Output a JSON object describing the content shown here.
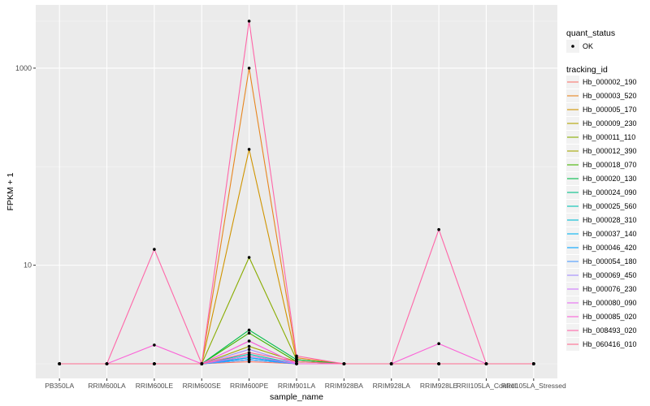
{
  "chart_data": {
    "type": "line",
    "title": "",
    "xlabel": "sample_name",
    "ylabel": "FPKM + 1",
    "y_scale": "log10",
    "ylim": [
      1,
      3000
    ],
    "y_ticks": [
      {
        "value": 10,
        "label": "10"
      },
      {
        "value": 1000,
        "label": "1000"
      }
    ],
    "grid": true,
    "background": "#ebebeb",
    "categories": [
      "PB350LA",
      "RRIM600LA",
      "RRIM600LE",
      "RRIM600SE",
      "RRIM600PE",
      "RRIM901LA",
      "RRIM928BA",
      "RRIM928LA",
      "RRIM928LE",
      "RRII105LA_Control",
      "RRII105LA_Stressed"
    ],
    "legend_position": "right",
    "legend": {
      "point_title": "quant_status",
      "point_items": [
        {
          "label": "OK",
          "color": "#000000"
        }
      ],
      "line_title": "tracking_id"
    },
    "series": [
      {
        "name": "Hb_000002_190",
        "color": "#F8766D",
        "values": [
          1,
          1,
          1,
          1,
          1.05,
          1,
          1,
          1,
          1,
          1,
          1
        ]
      },
      {
        "name": "Hb_000003_520",
        "color": "#E7851E",
        "values": [
          1,
          1,
          1,
          1,
          1000,
          1.15,
          1,
          1,
          1,
          1,
          1
        ]
      },
      {
        "name": "Hb_000005_170",
        "color": "#D09400",
        "values": [
          1,
          1,
          1,
          1,
          150,
          1.1,
          1,
          1,
          1,
          1,
          1
        ]
      },
      {
        "name": "Hb_000009_230",
        "color": "#B2A100",
        "values": [
          1,
          1,
          1,
          1,
          1.2,
          1,
          1,
          1,
          1,
          1,
          1
        ]
      },
      {
        "name": "Hb_000011_110",
        "color": "#89AC00",
        "values": [
          1,
          1,
          1,
          1,
          12,
          1.1,
          1,
          1,
          1,
          1,
          1
        ]
      },
      {
        "name": "Hb_000012_390",
        "color": "#A4A600",
        "values": [
          1,
          1,
          1,
          1,
          1.5,
          1.05,
          1,
          1,
          1,
          1,
          1
        ]
      },
      {
        "name": "Hb_000018_070",
        "color": "#45B500",
        "values": [
          1,
          1,
          1,
          1,
          2.05,
          1.05,
          1,
          1,
          1,
          1,
          1
        ]
      },
      {
        "name": "Hb_000020_130",
        "color": "#00BC49",
        "values": [
          1,
          1,
          1,
          1,
          2.2,
          1.1,
          1,
          1,
          1,
          1,
          1
        ]
      },
      {
        "name": "Hb_000024_090",
        "color": "#00C087",
        "values": [
          1,
          1,
          1,
          1,
          1.1,
          1,
          1,
          1,
          1,
          1,
          1
        ]
      },
      {
        "name": "Hb_000025_560",
        "color": "#00C1B2",
        "values": [
          1,
          1,
          1,
          1,
          1.25,
          1,
          1,
          1,
          1,
          1,
          1
        ]
      },
      {
        "name": "Hb_000028_310",
        "color": "#00BCD6",
        "values": [
          1,
          1,
          1,
          1,
          1.15,
          1,
          1,
          1,
          1,
          1,
          1
        ]
      },
      {
        "name": "Hb_000037_140",
        "color": "#00B3F2",
        "values": [
          1,
          1,
          1,
          1,
          1.1,
          1,
          1,
          1,
          1,
          1,
          1
        ]
      },
      {
        "name": "Hb_000046_420",
        "color": "#00A4FF",
        "values": [
          1,
          1,
          1,
          1,
          1.15,
          1,
          1,
          1,
          1,
          1,
          1
        ]
      },
      {
        "name": "Hb_000054_180",
        "color": "#4D9AFF",
        "values": [
          1,
          1,
          1,
          1,
          1.1,
          1,
          1,
          1,
          1,
          1,
          1
        ]
      },
      {
        "name": "Hb_000069_450",
        "color": "#A38DFF",
        "values": [
          1,
          1,
          1,
          1,
          1.4,
          1,
          1,
          1,
          1,
          1,
          1
        ]
      },
      {
        "name": "Hb_000076_230",
        "color": "#CF78FF",
        "values": [
          1,
          1,
          1,
          1,
          1.7,
          1,
          1,
          1,
          1,
          1,
          1
        ]
      },
      {
        "name": "Hb_000080_090",
        "color": "#E76BF3",
        "values": [
          1,
          1,
          1,
          1,
          1.2,
          1,
          1,
          1,
          1,
          1,
          1
        ]
      },
      {
        "name": "Hb_000085_020",
        "color": "#FB61D7",
        "values": [
          1,
          1,
          1.55,
          1,
          1.7,
          1,
          1,
          1,
          1.6,
          1,
          1
        ]
      },
      {
        "name": "Hb_008493_020",
        "color": "#FF66A8",
        "values": [
          1,
          1,
          14.5,
          1,
          3000,
          1.2,
          1,
          1,
          23,
          1,
          1
        ]
      },
      {
        "name": "Hb_060416_010",
        "color": "#FF6C91",
        "values": [
          1,
          1,
          1,
          1,
          1.3,
          1.05,
          1,
          1,
          1,
          1,
          1
        ]
      }
    ]
  }
}
